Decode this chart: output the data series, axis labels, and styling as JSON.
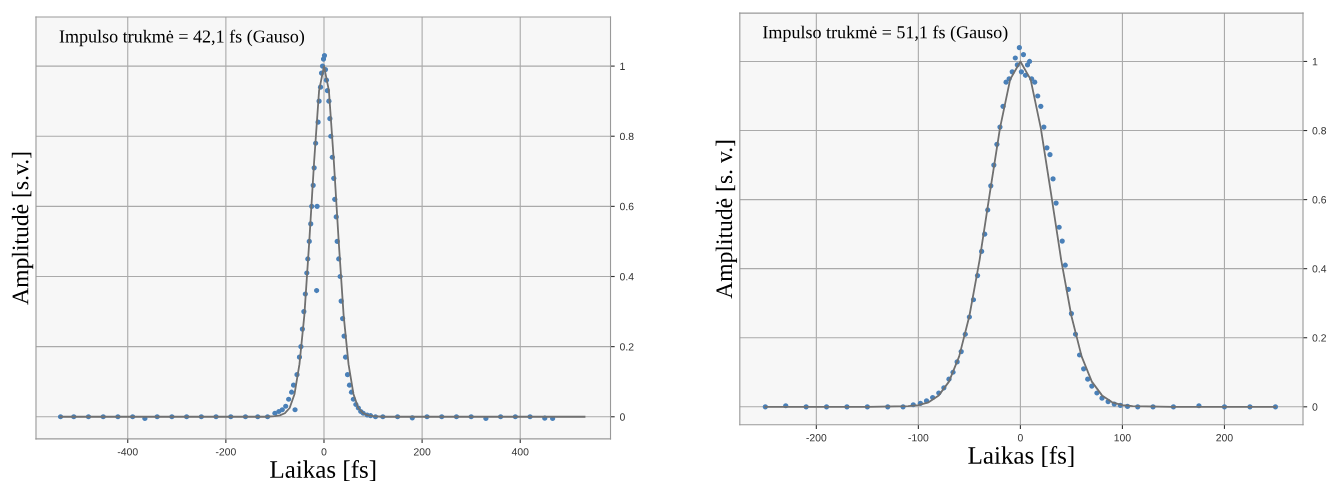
{
  "chart_data": [
    {
      "type": "scatter",
      "xlabel": "Laikas [fs]",
      "ylabel": "Amplitudė [s.v.]",
      "annotations": [
        "Impulso trukmė = 42,1 fs (Gauso)"
      ],
      "xlim": [
        -587,
        584
      ],
      "xticks": [
        -400,
        -200,
        0,
        200,
        400
      ],
      "ylim": [
        -0.063,
        1.14
      ],
      "yticks": [
        0,
        0.2,
        0.4,
        0.6,
        0.8,
        1
      ],
      "grid": true,
      "series": [
        {
          "marker": "circle",
          "color": "#4a80b8",
          "x": [
            -537,
            -510,
            -480,
            -450,
            -420,
            -390,
            -365,
            -340,
            -310,
            -280,
            -250,
            -220,
            -190,
            -160,
            -135,
            -115,
            -100,
            -92,
            -85,
            -78,
            -72,
            -66,
            -62,
            -59,
            -55,
            -50,
            -47,
            -44,
            -41,
            -38,
            -35,
            -33,
            -30,
            -27,
            -25,
            -22,
            -20,
            -17,
            -15,
            -14,
            -12,
            -10,
            -7,
            -5,
            -3,
            -1,
            1,
            3,
            5,
            7,
            10,
            12,
            14,
            17,
            20,
            22,
            25,
            27,
            30,
            33,
            35,
            38,
            41,
            44,
            48,
            52,
            56,
            60,
            65,
            70,
            75,
            80,
            88,
            95,
            105,
            120,
            150,
            180,
            210,
            240,
            270,
            300,
            330,
            360,
            390,
            420,
            450,
            466
          ],
          "values": [
            0.0,
            0.0,
            0.0,
            0.0,
            0.0,
            0.0,
            -0.005,
            0.0,
            0.0,
            0.0,
            0.0,
            0.0,
            0.0,
            0.0,
            0.0,
            0.0,
            0.01,
            0.015,
            0.02,
            0.03,
            0.05,
            0.07,
            0.09,
            0.02,
            0.12,
            0.17,
            0.2,
            0.25,
            0.3,
            0.35,
            0.41,
            0.45,
            0.5,
            0.55,
            0.6,
            0.66,
            0.71,
            0.78,
            0.36,
            0.6,
            0.84,
            0.9,
            0.94,
            0.98,
            1.0,
            1.02,
            1.03,
            0.99,
            0.96,
            0.93,
            0.9,
            0.85,
            0.8,
            0.74,
            0.68,
            0.62,
            0.57,
            0.5,
            0.45,
            0.4,
            0.33,
            0.28,
            0.23,
            0.17,
            0.12,
            0.09,
            0.07,
            0.05,
            0.035,
            0.025,
            0.015,
            0.01,
            0.005,
            0.003,
            0.0,
            0.0,
            0.0,
            -0.003,
            0.0,
            0.0,
            0.0,
            0.0,
            -0.005,
            0.0,
            0.0,
            0.0,
            -0.004,
            -0.005
          ]
        },
        {
          "type": "line",
          "line_style": "solid",
          "color": "#707070",
          "x": [
            -537,
            -200,
            -120,
            -100,
            -90,
            -80,
            -70,
            -60,
            -50,
            -40,
            -30,
            -20,
            -10,
            0,
            10,
            20,
            30,
            40,
            50,
            60,
            70,
            80,
            90,
            100,
            120,
            200,
            531
          ],
          "values": [
            0,
            0,
            0,
            0.002,
            0.004,
            0.01,
            0.025,
            0.065,
            0.15,
            0.29,
            0.5,
            0.73,
            0.93,
            1.0,
            0.93,
            0.73,
            0.5,
            0.29,
            0.15,
            0.065,
            0.025,
            0.01,
            0.004,
            0.002,
            0,
            0,
            0
          ]
        }
      ]
    },
    {
      "type": "scatter",
      "xlabel": "Laikas [fs]",
      "ylabel": "Amplitudė [s. v.]",
      "annotations": [
        "Impulso trukmė = 51,1 fs (Gauso)"
      ],
      "xlim": [
        -275,
        277
      ],
      "xticks": [
        -200,
        -100,
        0,
        100,
        200
      ],
      "ylim": [
        -0.052,
        1.14
      ],
      "yticks": [
        0,
        0.2,
        0.4,
        0.6,
        0.8,
        1
      ],
      "grid": true,
      "series": [
        {
          "marker": "circle",
          "color": "#4a80b8",
          "x": [
            -250,
            -230,
            -210,
            -190,
            -170,
            -150,
            -130,
            -115,
            -105,
            -98,
            -92,
            -86,
            -80,
            -75,
            -70,
            -66,
            -62,
            -58,
            -54,
            -50,
            -46,
            -42,
            -38,
            -35,
            -32,
            -29,
            -26,
            -23,
            -20,
            -17,
            -14,
            -11,
            -8,
            -5,
            -3,
            -1,
            1,
            3,
            5,
            7,
            9,
            11,
            14,
            17,
            20,
            23,
            26,
            29,
            32,
            35,
            38,
            41,
            44,
            47,
            50,
            54,
            58,
            62,
            66,
            70,
            75,
            80,
            86,
            92,
            98,
            105,
            115,
            130,
            150,
            175,
            200,
            225,
            250
          ],
          "values": [
            0.0,
            0.003,
            0.0,
            0.0,
            0.0,
            0.0,
            0.0,
            0.0,
            0.006,
            0.01,
            0.017,
            0.027,
            0.04,
            0.055,
            0.08,
            0.1,
            0.13,
            0.16,
            0.21,
            0.26,
            0.31,
            0.38,
            0.45,
            0.5,
            0.57,
            0.64,
            0.7,
            0.76,
            0.81,
            0.87,
            0.94,
            0.95,
            0.97,
            1.01,
            0.99,
            1.04,
            0.97,
            1.02,
            0.96,
            0.99,
            1.0,
            0.95,
            0.94,
            0.9,
            0.87,
            0.81,
            0.75,
            0.73,
            0.66,
            0.59,
            0.52,
            0.48,
            0.41,
            0.34,
            0.27,
            0.21,
            0.15,
            0.11,
            0.08,
            0.06,
            0.04,
            0.025,
            0.015,
            0.008,
            0.004,
            0.001,
            0.0,
            0.0,
            0.0,
            0.003,
            0.0,
            0.0,
            0.0
          ]
        },
        {
          "type": "line",
          "line_style": "solid",
          "color": "#707070",
          "x": [
            -250,
            -150,
            -110,
            -100,
            -90,
            -80,
            -70,
            -60,
            -50,
            -40,
            -30,
            -20,
            -10,
            0,
            10,
            20,
            30,
            40,
            50,
            60,
            70,
            80,
            90,
            100,
            110,
            150,
            250
          ],
          "values": [
            0,
            0,
            0.002,
            0.005,
            0.013,
            0.033,
            0.073,
            0.146,
            0.263,
            0.425,
            0.618,
            0.807,
            0.948,
            1.0,
            0.948,
            0.807,
            0.618,
            0.425,
            0.263,
            0.146,
            0.073,
            0.033,
            0.013,
            0.005,
            0.002,
            0,
            0
          ]
        }
      ]
    }
  ]
}
